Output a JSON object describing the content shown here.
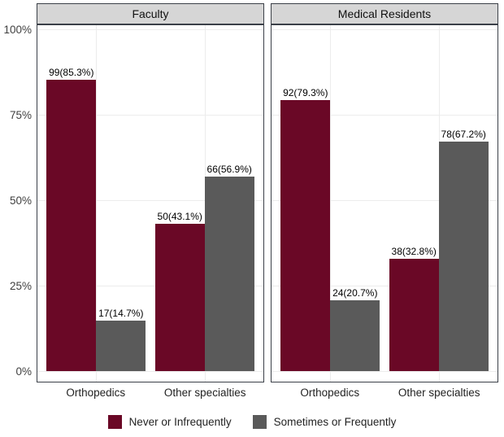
{
  "chart_data": {
    "type": "bar",
    "title": "",
    "facets": [
      "Faculty",
      "Medical Residents"
    ],
    "categories": [
      "Orthopedics",
      "Other specialties"
    ],
    "ylim": [
      0,
      100
    ],
    "yticks": [
      0,
      25,
      50,
      75,
      100
    ],
    "ytick_labels": [
      "0%",
      "25%",
      "50%",
      "75%",
      "100%"
    ],
    "grid": true,
    "legend_position": "bottom",
    "legend": [
      {
        "name": "Never or Infrequently",
        "color": "#6a0826"
      },
      {
        "name": "Sometimes or Frequently",
        "color": "#5a5a5a"
      }
    ],
    "panels": [
      {
        "title": "Faculty",
        "groups": [
          {
            "category": "Orthopedics",
            "bars": [
              {
                "series": "Never or Infrequently",
                "count": 99,
                "pct": 85.3,
                "label": "99(85.3%)"
              },
              {
                "series": "Sometimes or Frequently",
                "count": 17,
                "pct": 14.7,
                "label": "17(14.7%)"
              }
            ]
          },
          {
            "category": "Other specialties",
            "bars": [
              {
                "series": "Never or Infrequently",
                "count": 50,
                "pct": 43.1,
                "label": "50(43.1%)"
              },
              {
                "series": "Sometimes or Frequently",
                "count": 66,
                "pct": 56.9,
                "label": "66(56.9%)"
              }
            ]
          }
        ]
      },
      {
        "title": "Medical Residents",
        "groups": [
          {
            "category": "Orthopedics",
            "bars": [
              {
                "series": "Never or Infrequently",
                "count": 92,
                "pct": 79.3,
                "label": "92(79.3%)"
              },
              {
                "series": "Sometimes or Frequently",
                "count": 24,
                "pct": 20.7,
                "label": "24(20.7%)"
              }
            ]
          },
          {
            "category": "Other specialties",
            "bars": [
              {
                "series": "Never or Infrequently",
                "count": 38,
                "pct": 32.8,
                "label": "38(32.8%)"
              },
              {
                "series": "Sometimes or Frequently",
                "count": 78,
                "pct": 67.2,
                "label": "78(67.2%)"
              }
            ]
          }
        ]
      }
    ],
    "colors": {
      "bar_never": "#6a0826",
      "bar_sometimes": "#5a5a5a",
      "strip_bg": "#d6d6d6",
      "panel_border": "#3b4048",
      "gridline": "#ececec"
    }
  }
}
